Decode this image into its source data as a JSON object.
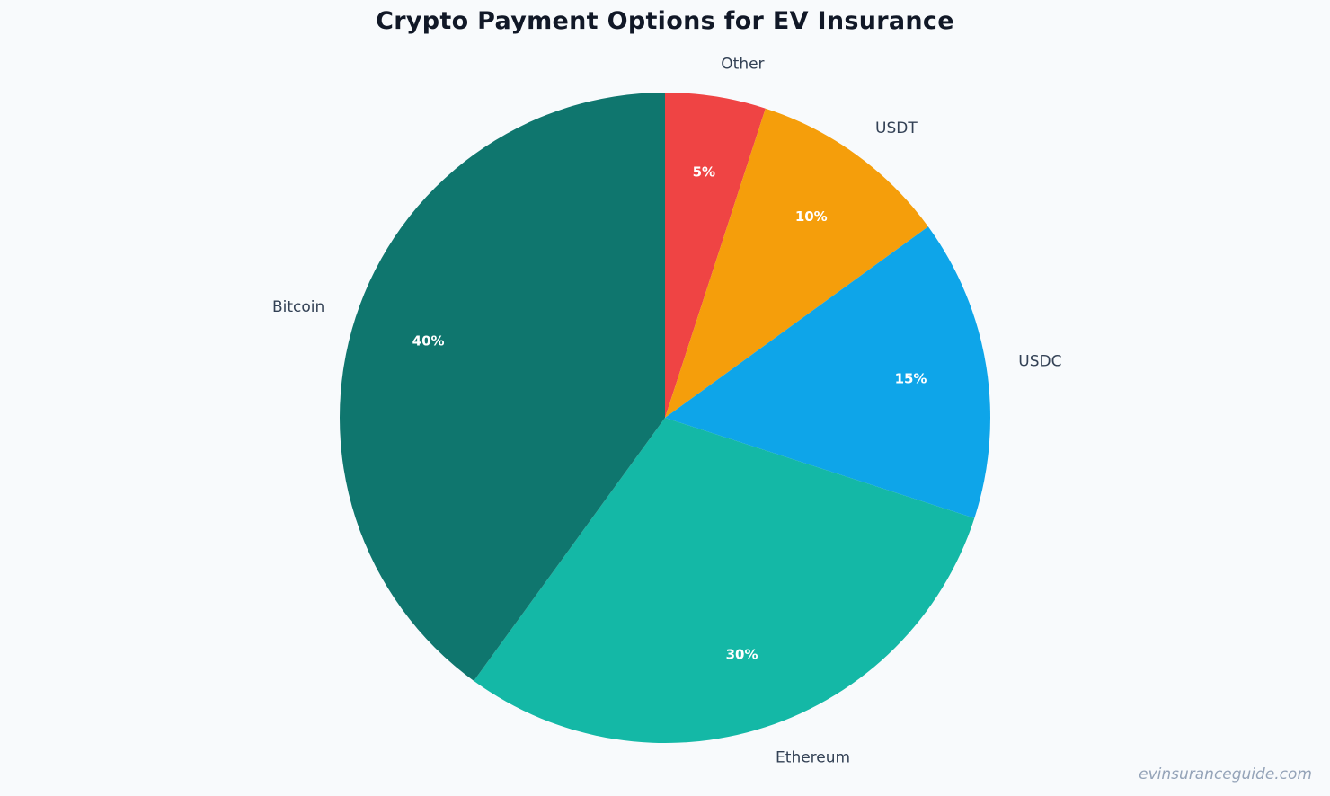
{
  "chart_data": {
    "type": "pie",
    "title": "Crypto Payment Options for EV Insurance",
    "categories": [
      "Other",
      "USDT",
      "USDC",
      "Ethereum",
      "Bitcoin"
    ],
    "values": [
      5,
      10,
      15,
      30,
      40
    ],
    "labels": [
      "5%",
      "10%",
      "15%",
      "30%",
      "40%"
    ],
    "colors": [
      "#ef4444",
      "#f59e0b",
      "#0ea5e9",
      "#14b8a6",
      "#0f766e"
    ],
    "start_angle": "12 o'clock",
    "direction": "clockwise",
    "legend": "none (labels outside slices)"
  },
  "watermark": "evinsuranceguide.com"
}
